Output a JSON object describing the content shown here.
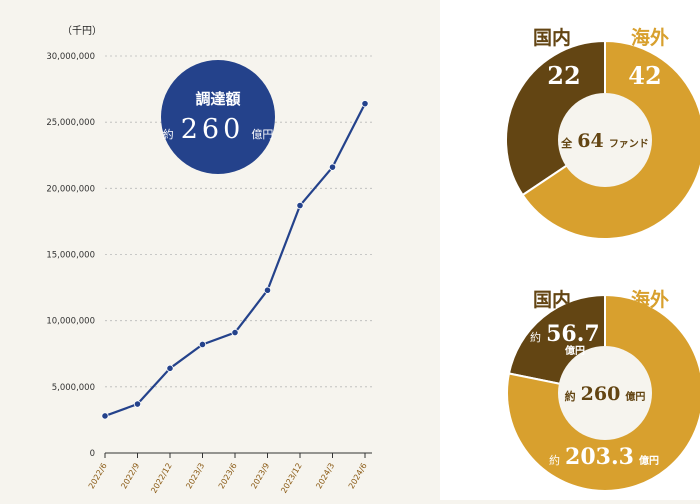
{
  "chart_data": [
    {
      "type": "line",
      "ylabel": "（千円）",
      "ylim": [
        0,
        30000000
      ],
      "y_ticks": [
        "0",
        "5,000,000",
        "10,000,000",
        "15,000,000",
        "20,000,000",
        "25,000,000",
        "30,000,000"
      ],
      "categories": [
        "2022/6",
        "2022/9",
        "2022/12",
        "2023/3",
        "2023/6",
        "2023/9",
        "2023/12",
        "2024/3",
        "2024/6"
      ],
      "values": [
        2800000,
        3700000,
        6400000,
        8200000,
        9100000,
        12300000,
        18700000,
        21600000,
        26400000
      ],
      "line_color": "#24428b",
      "grid": true
    },
    {
      "type": "pie",
      "subtype": "donut",
      "labels": [
        "国内",
        "海外"
      ],
      "values": [
        22,
        42
      ],
      "colors": [
        "#634513",
        "#d8a02e"
      ]
    },
    {
      "type": "pie",
      "subtype": "donut",
      "labels": [
        "国内",
        "海外"
      ],
      "values": [
        56.7,
        203.3
      ],
      "colors": [
        "#634513",
        "#d8a02e"
      ]
    }
  ],
  "badge": {
    "title": "調達額",
    "prefix": "約",
    "amount": "260",
    "unit": "億円",
    "color": "#24428b"
  },
  "donut1": {
    "domestic_label": "国内",
    "overseas_label": "海外",
    "domestic_value": "22",
    "overseas_value": "42",
    "center_prefix": "全",
    "center_value": "64",
    "center_unit": "ファンド"
  },
  "donut2": {
    "domestic_label": "国内",
    "overseas_label": "海外",
    "domestic_prefix": "約",
    "domestic_value": "56.7",
    "domestic_unit": "億円",
    "overseas_prefix": "約",
    "overseas_value": "203.3",
    "overseas_unit": "億円",
    "center_prefix": "約",
    "center_value": "260",
    "center_unit": "億円"
  }
}
